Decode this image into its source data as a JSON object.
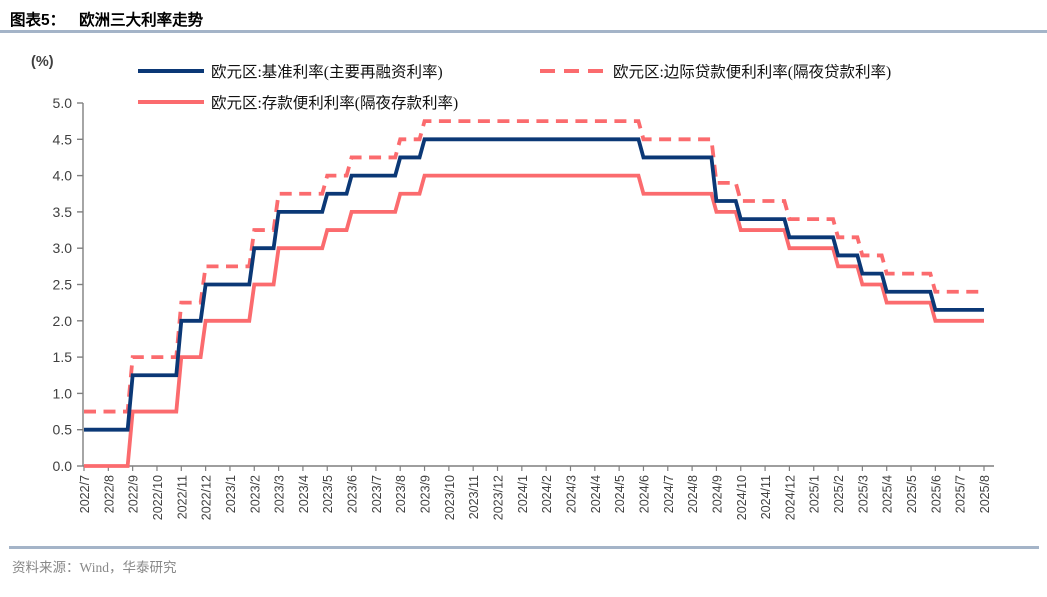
{
  "header": {
    "label": "图表5：",
    "title": "欧洲三大利率走势"
  },
  "footer": {
    "source": "资料来源：Wind，华泰研究"
  },
  "colors": {
    "navy": "#0b3876",
    "pink": "#fb6b6e",
    "axis": "#7f7f7f",
    "tick_text": "#404040",
    "divider": "#a4b4c8",
    "source_text": "#888888"
  },
  "chart_data": {
    "type": "line",
    "title": "欧洲三大利率走势",
    "unit_label": "(%)",
    "xlabel": "",
    "ylabel": "(%)",
    "ylim": [
      0.0,
      5.0
    ],
    "ytick_step": 0.5,
    "grid": false,
    "legend_position": "top",
    "line_shape": "step",
    "x": [
      "2022/7",
      "2022/8",
      "2022/9",
      "2022/10",
      "2022/11",
      "2022/12",
      "2023/1",
      "2023/2",
      "2023/3",
      "2023/4",
      "2023/5",
      "2023/6",
      "2023/7",
      "2023/8",
      "2023/9",
      "2023/10",
      "2023/11",
      "2023/12",
      "2024/1",
      "2024/2",
      "2024/3",
      "2024/4",
      "2024/5",
      "2024/6",
      "2024/7",
      "2024/8",
      "2024/9",
      "2024/10",
      "2024/11",
      "2024/12",
      "2025/1",
      "2025/2",
      "2025/3",
      "2025/4",
      "2025/5",
      "2025/6",
      "2025/7",
      "2025/8"
    ],
    "series": [
      {
        "name": "欧元区:基准利率(主要再融资利率)",
        "color": "#0b3876",
        "style": "solid",
        "values": [
          0.5,
          0.5,
          1.25,
          1.25,
          2.0,
          2.5,
          2.5,
          3.0,
          3.5,
          3.5,
          3.75,
          4.0,
          4.0,
          4.25,
          4.5,
          4.5,
          4.5,
          4.5,
          4.5,
          4.5,
          4.5,
          4.5,
          4.5,
          4.25,
          4.25,
          4.25,
          3.65,
          3.4,
          3.4,
          3.15,
          3.15,
          2.9,
          2.65,
          2.4,
          2.4,
          2.15,
          2.15,
          2.15
        ]
      },
      {
        "name": "欧元区:边际贷款便利利率(隔夜贷款利率)",
        "color": "#fb6b6e",
        "style": "dashed",
        "values": [
          0.75,
          0.75,
          1.5,
          1.5,
          2.25,
          2.75,
          2.75,
          3.25,
          3.75,
          3.75,
          4.0,
          4.25,
          4.25,
          4.5,
          4.75,
          4.75,
          4.75,
          4.75,
          4.75,
          4.75,
          4.75,
          4.75,
          4.75,
          4.5,
          4.5,
          4.5,
          3.9,
          3.65,
          3.65,
          3.4,
          3.4,
          3.15,
          2.9,
          2.65,
          2.65,
          2.4,
          2.4,
          2.4
        ]
      },
      {
        "name": "欧元区:存款便利利率(隔夜存款利率)",
        "color": "#fb6b6e",
        "style": "solid",
        "values": [
          0.0,
          0.0,
          0.75,
          0.75,
          1.5,
          2.0,
          2.0,
          2.5,
          3.0,
          3.0,
          3.25,
          3.5,
          3.5,
          3.75,
          4.0,
          4.0,
          4.0,
          4.0,
          4.0,
          4.0,
          4.0,
          4.0,
          4.0,
          3.75,
          3.75,
          3.75,
          3.5,
          3.25,
          3.25,
          3.0,
          3.0,
          2.75,
          2.5,
          2.25,
          2.25,
          2.0,
          2.0,
          2.0
        ]
      }
    ]
  }
}
